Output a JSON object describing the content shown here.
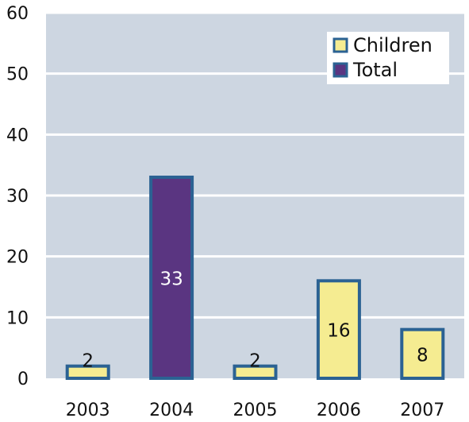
{
  "chart_data": {
    "type": "bar",
    "title": "",
    "xlabel": "",
    "ylabel": "",
    "ylim": [
      0,
      60
    ],
    "yticks": [
      0,
      10,
      20,
      30,
      40,
      50,
      60
    ],
    "categories": [
      "2003",
      "2004",
      "2005",
      "2006",
      "2007"
    ],
    "bars": [
      {
        "category": "2003",
        "value": 2,
        "series": "Children",
        "label": "2"
      },
      {
        "category": "2004",
        "value": 33,
        "series": "Total",
        "label": "33"
      },
      {
        "category": "2005",
        "value": 2,
        "series": "Children",
        "label": "2"
      },
      {
        "category": "2006",
        "value": 16,
        "series": "Children",
        "label": "16"
      },
      {
        "category": "2007",
        "value": 8,
        "series": "Children",
        "label": "8"
      }
    ],
    "series": [
      {
        "name": "Children",
        "color": "#f5ec91"
      },
      {
        "name": "Total",
        "color": "#5a3581"
      }
    ],
    "legend": {
      "placement": "top-right"
    },
    "grid": true,
    "colors": {
      "plot_background": "#cdd6e1",
      "gridline": "#ffffff",
      "bar_border": "#2b6293"
    }
  }
}
